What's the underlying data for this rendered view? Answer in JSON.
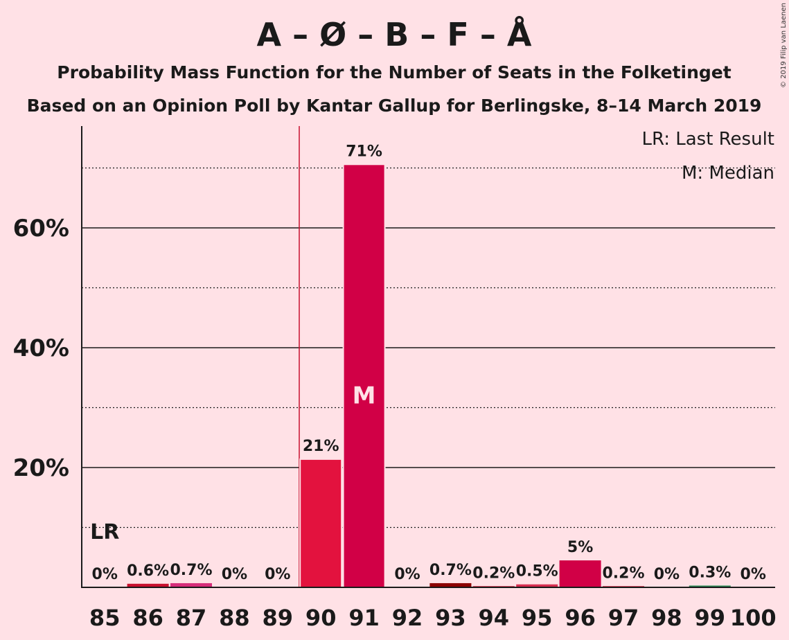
{
  "chart_data": {
    "type": "bar",
    "title": "A – Ø – B – F – Å",
    "subtitle_1": "Probability Mass Function for the Number of Seats in the Folketinget",
    "subtitle_2": "Based on an Opinion Poll by Kantar Gallup for Berlingske, 8–14 March 2019",
    "copyright": "© 2019 Filip van Laenen",
    "categories": [
      "85",
      "86",
      "87",
      "88",
      "89",
      "90",
      "91",
      "92",
      "93",
      "94",
      "95",
      "96",
      "97",
      "98",
      "99",
      "100"
    ],
    "values": [
      0,
      0.6,
      0.7,
      0,
      0,
      21.4,
      70.6,
      0,
      0.7,
      0.2,
      0.5,
      4.5,
      0.2,
      0,
      0.3,
      0
    ],
    "value_labels": [
      "0%",
      "0.6%",
      "0.7%",
      "0%",
      "0%",
      "21%",
      "71%",
      "0%",
      "0.7%",
      "0.2%",
      "0.5%",
      "5%",
      "0.2%",
      "0%",
      "0.3%",
      "0%"
    ],
    "bar_colors": [
      "#C8102E",
      "#C8102E",
      "#D62D7A",
      "#C8102E",
      "#C8102E",
      "#E3123E",
      "#D10046",
      "#C8102E",
      "#8B0000",
      "#C8102E",
      "#D62D50",
      "#D10046",
      "#C8102E",
      "#C8102E",
      "#2E8B57",
      "#C8102E"
    ],
    "ylim": [
      0,
      77
    ],
    "yticks": [
      20,
      40,
      60
    ],
    "ytick_labels": [
      "20%",
      "40%",
      "60%"
    ],
    "minor_gridlines": [
      10,
      30,
      50,
      70
    ],
    "last_result_seat": "89.5",
    "last_result_marker": "LR",
    "median_seat": "91",
    "median_marker": "M",
    "legend_position": "top-right",
    "legend": [
      "LR: Last Result",
      "M: Median"
    ],
    "colors": {
      "background": "#FFE1E6",
      "lr_line": "#C8102E",
      "text": "#1a1a1a"
    }
  }
}
